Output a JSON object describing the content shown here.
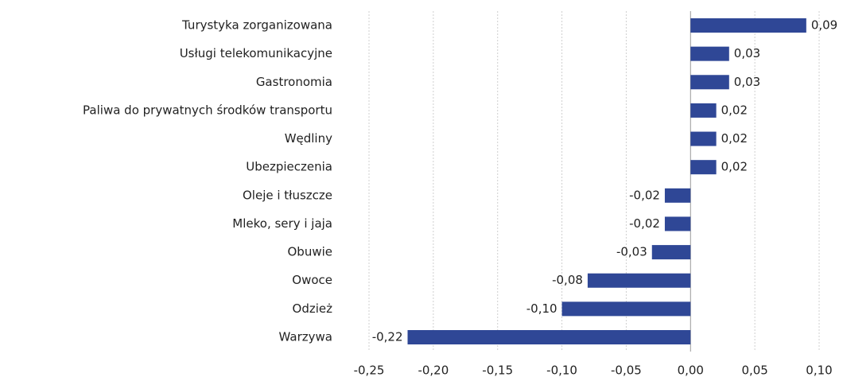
{
  "chart_data": {
    "type": "bar",
    "orientation": "horizontal",
    "categories": [
      "Turystyka zorganizowana",
      "Usługi telekomunikacyjne",
      "Gastronomia",
      "Paliwa do prywatnych środków transportu",
      "Wędliny",
      "Ubezpieczenia",
      "Oleje i tłuszcze",
      "Mleko, sery i jaja",
      "Obuwie",
      "Owoce",
      "Odzież",
      "Warzywa"
    ],
    "values": [
      0.09,
      0.03,
      0.03,
      0.02,
      0.02,
      0.02,
      -0.02,
      -0.02,
      -0.03,
      -0.08,
      -0.1,
      -0.22
    ],
    "value_labels": [
      "0,09",
      "0,03",
      "0,03",
      "0,02",
      "0,02",
      "0,02",
      "-0,02",
      "-0,02",
      "-0,03",
      "-0,08",
      "-0,10",
      "-0,22"
    ],
    "color": "#2f4796",
    "xlim": [
      -0.25,
      0.1
    ],
    "xticks": [
      {
        "value": -0.25,
        "label": "-0,25"
      },
      {
        "value": -0.2,
        "label": "-0,20"
      },
      {
        "value": -0.15,
        "label": "-0,15"
      },
      {
        "value": -0.1,
        "label": "-0,10"
      },
      {
        "value": -0.05,
        "label": "-0,05"
      },
      {
        "value": 0,
        "label": "0,00"
      },
      {
        "value": 0.05,
        "label": "0,05"
      },
      {
        "value": 0.1,
        "label": "0,10"
      }
    ],
    "grid": true
  }
}
